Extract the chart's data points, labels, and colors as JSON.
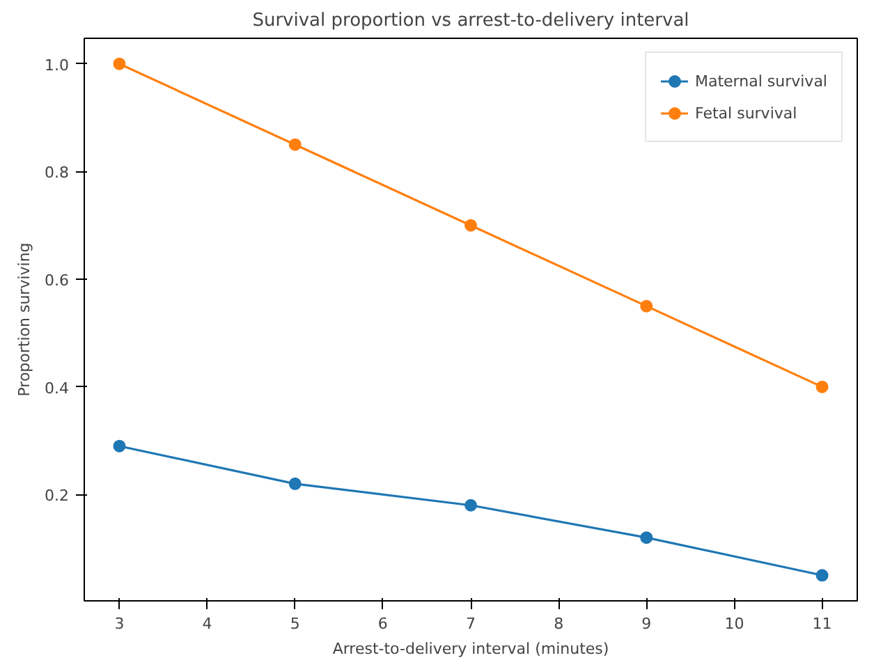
{
  "chart_data": {
    "type": "line",
    "title": "Survival proportion vs arrest-to-delivery interval",
    "xlabel": "Arrest-to-delivery interval (minutes)",
    "ylabel": "Proportion surviving",
    "x": [
      3,
      5,
      7,
      9,
      11
    ],
    "series": [
      {
        "name": "Maternal survival",
        "color": "#1f77b4",
        "values": [
          0.29,
          0.22,
          0.18,
          0.12,
          0.05
        ]
      },
      {
        "name": "Fetal survival",
        "color": "#ff7f0e",
        "values": [
          1.0,
          0.85,
          0.7,
          0.55,
          0.4
        ]
      }
    ],
    "xlim": [
      2.6,
      11.4
    ],
    "ylim": [
      0.0025,
      1.0475
    ],
    "xticks": [
      3,
      4,
      5,
      6,
      7,
      8,
      9,
      10,
      11
    ],
    "yticks": [
      0.2,
      0.4,
      0.6,
      0.8,
      {
        "value": 1.0,
        "label": "1.0"
      }
    ],
    "grid": false,
    "legend": "top right",
    "marker": "circle",
    "line_style": "solid"
  }
}
